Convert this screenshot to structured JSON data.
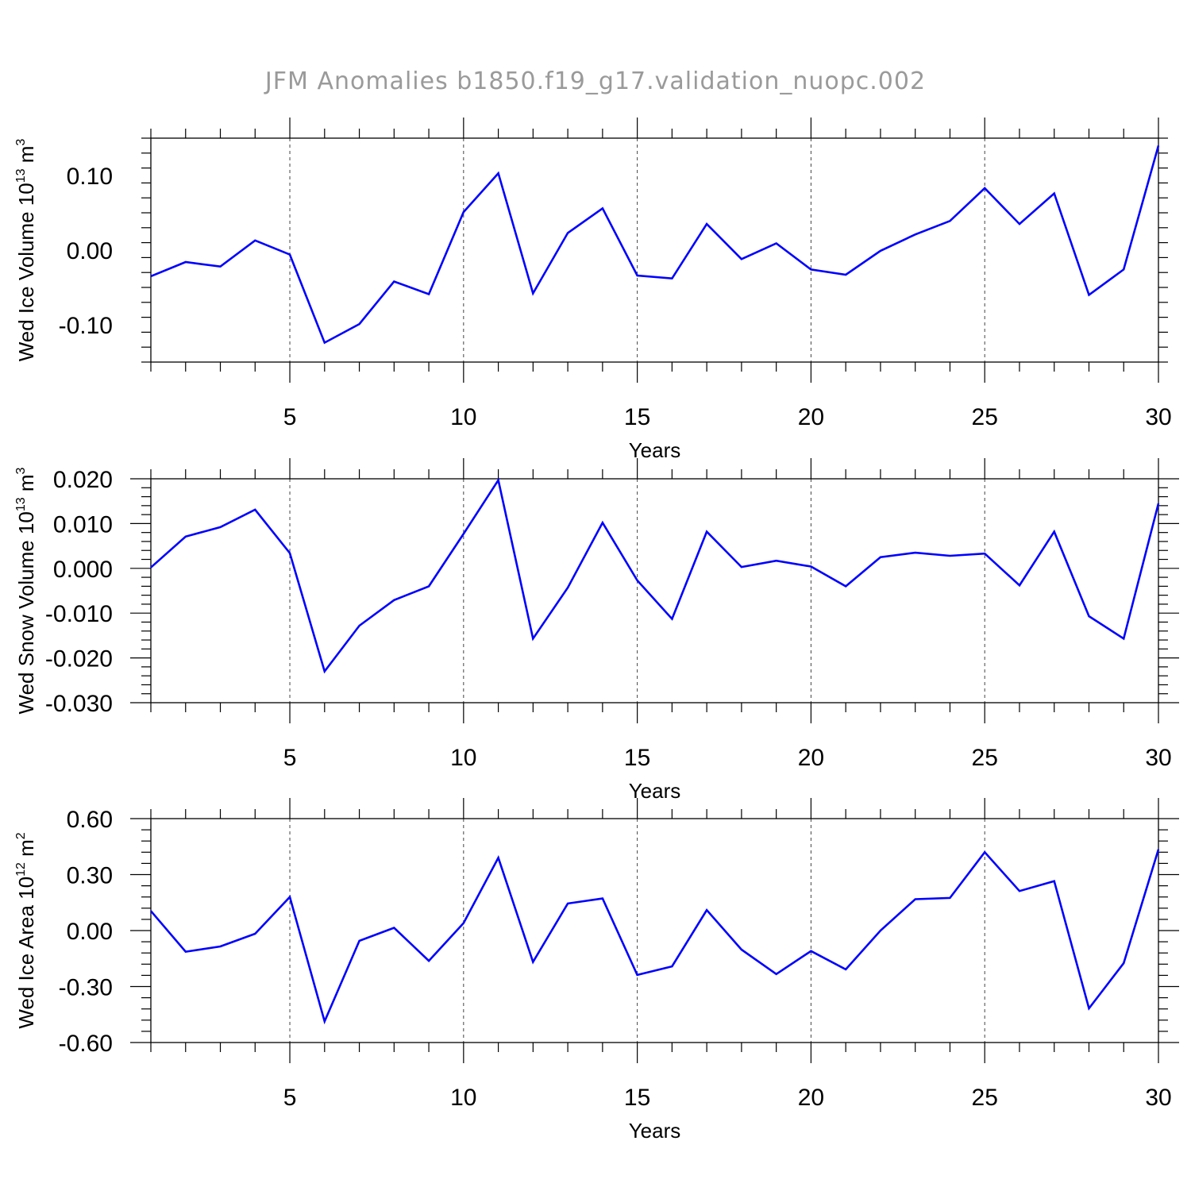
{
  "chart_data": [
    {
      "type": "line",
      "title": "JFM Anomalies b1850.f19_g17.validation_nuopc.002",
      "xlabel": "Years",
      "ylabel": {
        "main": "Wed Ice Volume 10",
        "exp": "13",
        "unit": " m",
        "unit_exp": "3"
      },
      "xlim": [
        1,
        30
      ],
      "ylim": [
        -0.15,
        0.15
      ],
      "xticks": [
        5,
        10,
        15,
        20,
        25,
        30
      ],
      "yticks": [
        -0.1,
        0.0,
        0.1
      ],
      "ytick_labels": [
        "-0.10",
        "0.00",
        "0.10"
      ],
      "grid": "vertical dashed at major x ticks",
      "series": [
        {
          "color": "#0000ff",
          "x": [
            1,
            2,
            3,
            4,
            5,
            6,
            7,
            8,
            9,
            10,
            11,
            12,
            13,
            14,
            15,
            16,
            17,
            18,
            19,
            20,
            21,
            22,
            23,
            24,
            25,
            26,
            27,
            28,
            29,
            30
          ],
          "y": [
            -0.035,
            -0.016,
            -0.022,
            0.013,
            -0.006,
            -0.124,
            -0.099,
            -0.042,
            -0.059,
            0.051,
            0.103,
            -0.058,
            0.023,
            0.056,
            -0.034,
            -0.038,
            0.035,
            -0.012,
            0.009,
            -0.026,
            -0.033,
            -0.001,
            0.021,
            0.039,
            0.083,
            0.035,
            0.076,
            -0.06,
            -0.026,
            0.14
          ]
        }
      ]
    },
    {
      "type": "line",
      "xlabel": "Years",
      "ylabel": {
        "main": "Wed Snow Volume 10",
        "exp": "13",
        "unit": " m",
        "unit_exp": "3"
      },
      "xlim": [
        1,
        30
      ],
      "ylim": [
        -0.03,
        0.02
      ],
      "xticks": [
        5,
        10,
        15,
        20,
        25,
        30
      ],
      "yticks": [
        -0.03,
        -0.02,
        -0.01,
        0.0,
        0.01,
        0.02
      ],
      "ytick_labels": [
        "-0.030",
        "-0.020",
        "-0.010",
        "0.000",
        "0.010",
        "0.020"
      ],
      "grid": "vertical dashed at major x ticks",
      "series": [
        {
          "color": "#0000ff",
          "x": [
            1,
            2,
            3,
            4,
            5,
            6,
            7,
            8,
            9,
            10,
            11,
            12,
            13,
            14,
            15,
            16,
            17,
            18,
            19,
            20,
            21,
            22,
            23,
            24,
            25,
            26,
            27,
            28,
            29,
            30
          ],
          "y": [
            0.0002,
            0.0071,
            0.0092,
            0.0131,
            0.0034,
            -0.023,
            -0.0128,
            -0.0071,
            -0.004,
            0.0077,
            0.0197,
            -0.0157,
            -0.0043,
            0.0102,
            -0.0027,
            -0.0113,
            0.0082,
            0.0003,
            0.0017,
            0.0004,
            -0.004,
            0.0025,
            0.0035,
            0.0028,
            0.0033,
            -0.0038,
            0.0082,
            -0.0107,
            -0.0157,
            0.0145
          ]
        }
      ]
    },
    {
      "type": "line",
      "xlabel": "Years",
      "ylabel": {
        "main": "Wed Ice Area 10",
        "exp": "12",
        "unit": " m",
        "unit_exp": "2"
      },
      "xlim": [
        1,
        30
      ],
      "ylim": [
        -0.6,
        0.6
      ],
      "xticks": [
        5,
        10,
        15,
        20,
        25,
        30
      ],
      "yticks": [
        -0.6,
        -0.3,
        0.0,
        0.3,
        0.6
      ],
      "ytick_labels": [
        "-0.60",
        "-0.30",
        "0.00",
        "0.30",
        "0.60"
      ],
      "grid": "vertical dashed at major x ticks",
      "series": [
        {
          "color": "#0000ff",
          "x": [
            1,
            2,
            3,
            4,
            5,
            6,
            7,
            8,
            9,
            10,
            11,
            12,
            13,
            14,
            15,
            16,
            17,
            18,
            19,
            20,
            21,
            22,
            23,
            24,
            25,
            26,
            27,
            28,
            29,
            30
          ],
          "y": [
            0.105,
            -0.113,
            -0.085,
            -0.017,
            0.18,
            -0.487,
            -0.055,
            0.015,
            -0.162,
            0.04,
            0.39,
            -0.168,
            0.145,
            0.172,
            -0.238,
            -0.192,
            0.11,
            -0.102,
            -0.233,
            -0.11,
            -0.208,
            0.0,
            0.168,
            0.175,
            0.42,
            0.212,
            0.265,
            -0.417,
            -0.175,
            0.435
          ]
        }
      ]
    }
  ]
}
